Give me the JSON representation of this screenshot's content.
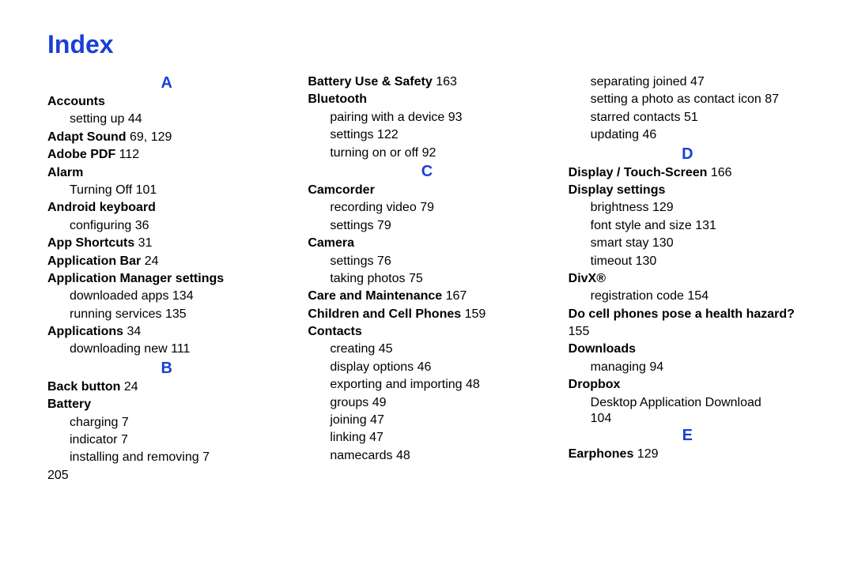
{
  "title": "Index",
  "page_number": "205",
  "letter_color": "#1a3fd6",
  "columns": [
    {
      "blocks": [
        {
          "kind": "letter",
          "text": "A"
        },
        {
          "kind": "topic",
          "text": "Accounts"
        },
        {
          "kind": "sub",
          "text": "setting up",
          "page": "44"
        },
        {
          "kind": "topic",
          "text": "Adapt Sound",
          "page": "69, 129"
        },
        {
          "kind": "topic",
          "text": "Adobe PDF",
          "page": "112"
        },
        {
          "kind": "topic",
          "text": "Alarm"
        },
        {
          "kind": "sub",
          "text": "Turning Off",
          "page": "101"
        },
        {
          "kind": "topic",
          "text": "Android keyboard"
        },
        {
          "kind": "sub",
          "text": "configuring",
          "page": "36"
        },
        {
          "kind": "topic",
          "text": "App Shortcuts",
          "page": "31"
        },
        {
          "kind": "topic",
          "text": "Application Bar",
          "page": "24"
        },
        {
          "kind": "topic",
          "text": "Application Manager settings"
        },
        {
          "kind": "sub",
          "text": "downloaded apps",
          "page": "134"
        },
        {
          "kind": "sub",
          "text": "running services",
          "page": "135"
        },
        {
          "kind": "topic",
          "text": "Applications",
          "page": "34"
        },
        {
          "kind": "sub",
          "text": "downloading new",
          "page": "111"
        },
        {
          "kind": "letter",
          "text": "B"
        },
        {
          "kind": "topic",
          "text": "Back button",
          "page": "24"
        },
        {
          "kind": "topic",
          "text": "Battery"
        },
        {
          "kind": "sub",
          "text": "charging",
          "page": "7"
        },
        {
          "kind": "sub",
          "text": "indicator",
          "page": "7"
        },
        {
          "kind": "sub",
          "text": "installing and removing",
          "page": "7"
        }
      ]
    },
    {
      "blocks": [
        {
          "kind": "topic",
          "text": "Battery Use & Safety",
          "page": "163"
        },
        {
          "kind": "topic",
          "text": "Bluetooth"
        },
        {
          "kind": "sub",
          "text": "pairing with a device",
          "page": "93"
        },
        {
          "kind": "sub",
          "text": "settings",
          "page": "122"
        },
        {
          "kind": "sub",
          "text": "turning on or off",
          "page": "92"
        },
        {
          "kind": "letter",
          "text": "C"
        },
        {
          "kind": "topic",
          "text": "Camcorder"
        },
        {
          "kind": "sub",
          "text": "recording video",
          "page": "79"
        },
        {
          "kind": "sub",
          "text": "settings",
          "page": "79"
        },
        {
          "kind": "topic",
          "text": "Camera"
        },
        {
          "kind": "sub",
          "text": "settings",
          "page": "76"
        },
        {
          "kind": "sub",
          "text": "taking photos",
          "page": "75"
        },
        {
          "kind": "topic",
          "text": "Care and Maintenance",
          "page": "167"
        },
        {
          "kind": "topic",
          "text": "Children and Cell Phones",
          "page": "159"
        },
        {
          "kind": "topic",
          "text": "Contacts"
        },
        {
          "kind": "sub",
          "text": "creating",
          "page": "45"
        },
        {
          "kind": "sub",
          "text": "display options",
          "page": "46"
        },
        {
          "kind": "sub",
          "text": "exporting and importing",
          "page": "48"
        },
        {
          "kind": "sub",
          "text": "groups",
          "page": "49"
        },
        {
          "kind": "sub",
          "text": "joining",
          "page": "47"
        },
        {
          "kind": "sub",
          "text": "linking",
          "page": "47"
        },
        {
          "kind": "sub",
          "text": "namecards",
          "page": "48"
        }
      ]
    },
    {
      "blocks": [
        {
          "kind": "sub",
          "text": "separating joined",
          "page": "47"
        },
        {
          "kind": "sub",
          "text": "setting a photo as contact icon",
          "page": "87"
        },
        {
          "kind": "sub",
          "text": "starred contacts",
          "page": "51"
        },
        {
          "kind": "sub",
          "text": "updating",
          "page": "46"
        },
        {
          "kind": "letter",
          "text": "D"
        },
        {
          "kind": "topic",
          "text": "Display / Touch-Screen",
          "page": "166"
        },
        {
          "kind": "topic",
          "text": "Display settings"
        },
        {
          "kind": "sub",
          "text": "brightness",
          "page": "129"
        },
        {
          "kind": "sub",
          "text": "font style and size",
          "page": "131"
        },
        {
          "kind": "sub",
          "text": "smart stay",
          "page": "130"
        },
        {
          "kind": "sub",
          "text": "timeout",
          "page": "130"
        },
        {
          "kind": "topic",
          "text": "DivX®"
        },
        {
          "kind": "sub",
          "text": "registration code",
          "page": "154"
        },
        {
          "kind": "topic",
          "text": "Do cell phones pose a health hazard?",
          "page": "155"
        },
        {
          "kind": "topic",
          "text": "Downloads"
        },
        {
          "kind": "sub",
          "text": "managing",
          "page": "94"
        },
        {
          "kind": "topic",
          "text": "Dropbox"
        },
        {
          "kind": "sub",
          "text": "Desktop Application Download",
          "page": "104",
          "wrap_page": true
        },
        {
          "kind": "letter",
          "text": "E"
        },
        {
          "kind": "topic",
          "text": "Earphones",
          "page": "129"
        }
      ]
    }
  ]
}
